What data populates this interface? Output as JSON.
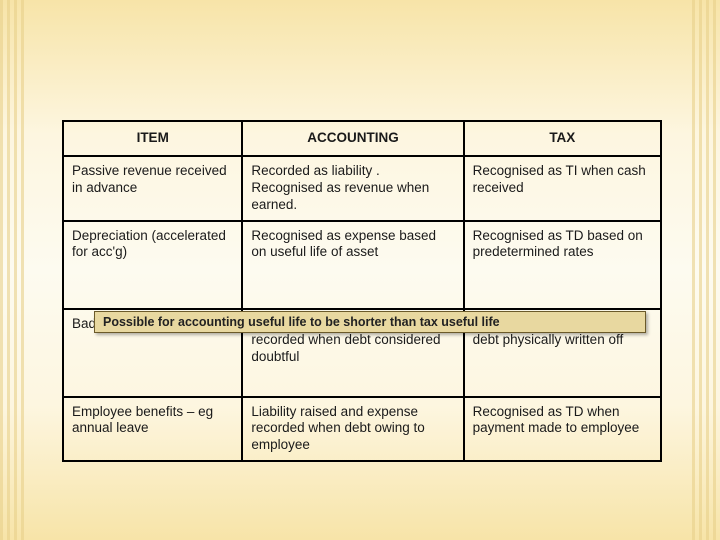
{
  "table": {
    "columns": [
      "ITEM",
      "ACCOUNTING",
      "TAX"
    ],
    "col_widths_pct": [
      30,
      37,
      33
    ],
    "border_color": "#000000",
    "header_fontweight": "bold",
    "fontsize_pt": 13.5,
    "rows": [
      {
        "item": "Passive revenue received in advance",
        "accounting": "Recorded as liability .  Recognised as revenue when earned.",
        "tax": "Recognised as TI when cash received"
      },
      {
        "item": "Depreciation (accelerated for acc'g)",
        "accounting": "Recognised as expense based on useful life of asset",
        "tax": "Recognised as TD based on predetermined rates"
      },
      {
        "item": "Bad/doubtful debts",
        "accounting": "Allowance raised and expense recorded when debt considered doubtful",
        "tax": "Recognised as  a TD when debt physically written off"
      },
      {
        "item": "Employee benefits – eg annual leave",
        "accounting": "Liability raised and expense recorded when debt owing to employee",
        "tax": "Recognised as TD when payment made to employee"
      }
    ]
  },
  "note": {
    "text": "Possible for accounting useful life to be shorter than tax useful life",
    "background_color": "#e8d8a0",
    "border_color": "#6b5a2a",
    "fontsize_pt": 12.5,
    "fontweight": "bold"
  },
  "background": {
    "gradient_colors": [
      "#f7e4a8",
      "#fdf6e0",
      "#fdfbf0",
      "#fdf6e0",
      "#f7e4a8"
    ],
    "stripe_color": "#e8d08a"
  }
}
